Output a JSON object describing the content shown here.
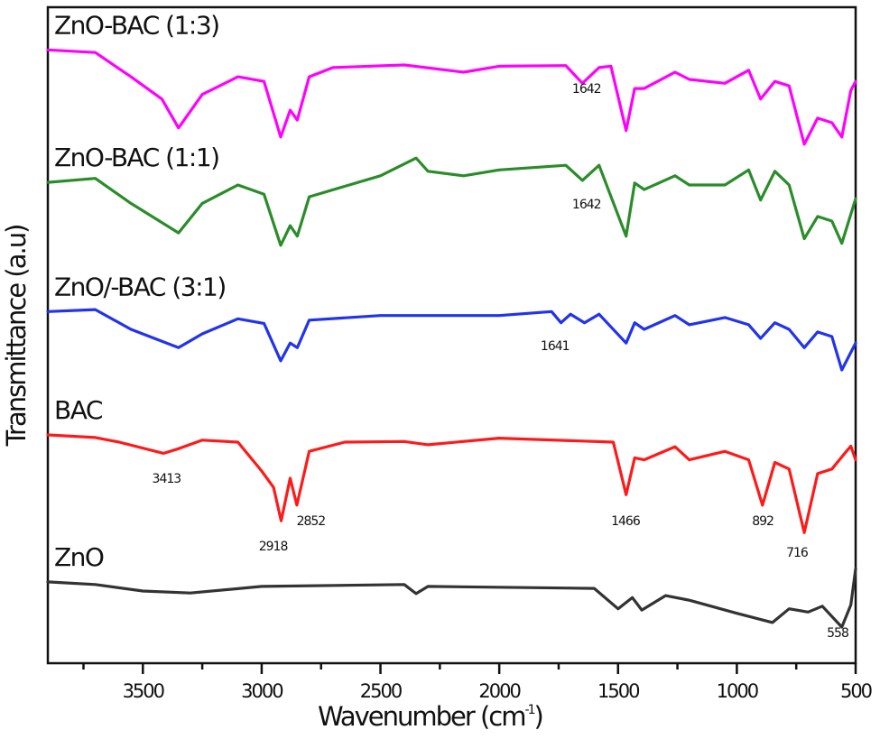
{
  "chart_data": {
    "type": "line",
    "title": "",
    "xlabel": "Wavenumber (cm",
    "xlabel_sup": "-1",
    "xlabel_close": ")",
    "ylabel": "Transmittance (a.u)",
    "xlim": [
      3900,
      500
    ],
    "ylim": [
      0,
      100
    ],
    "x_reversed": true,
    "grid": false,
    "legend": "inline labels above each curve",
    "x_ticks": [
      3500,
      3000,
      2500,
      2000,
      1500,
      1000,
      500
    ],
    "x_tick_labels": [
      "3500",
      "3000",
      "2500",
      "2000",
      "1500",
      "1000",
      "500"
    ],
    "x_minor_ticks": [
      3750,
      3250,
      2750,
      2250,
      1750,
      1250,
      750
    ],
    "series": [
      {
        "name": "ZnO-BAC (1:3)",
        "color": "#ff00ff",
        "points": [
          [
            3900,
            93.5
          ],
          [
            3700,
            93.1
          ],
          [
            3550,
            89.4
          ],
          [
            3420,
            86
          ],
          [
            3350,
            81.6
          ],
          [
            3250,
            86.7
          ],
          [
            3100,
            89.4
          ],
          [
            2990,
            88.7
          ],
          [
            2920,
            80.2
          ],
          [
            2880,
            84.3
          ],
          [
            2850,
            82.8
          ],
          [
            2800,
            89.4
          ],
          [
            2700,
            90.8
          ],
          [
            2400,
            91.2
          ],
          [
            2150,
            90.1
          ],
          [
            2000,
            91
          ],
          [
            1720,
            91.1
          ],
          [
            1650,
            88.4
          ],
          [
            1580,
            90.8
          ],
          [
            1530,
            91
          ],
          [
            1466,
            81.2
          ],
          [
            1430,
            87.6
          ],
          [
            1390,
            87.6
          ],
          [
            1260,
            90.1
          ],
          [
            1200,
            89
          ],
          [
            1050,
            88.4
          ],
          [
            950,
            90.4
          ],
          [
            900,
            86
          ],
          [
            840,
            88.7
          ],
          [
            780,
            88
          ],
          [
            716,
            79.1
          ],
          [
            660,
            83.1
          ],
          [
            600,
            82.4
          ],
          [
            558,
            80.2
          ],
          [
            520,
            87.3
          ],
          [
            500,
            88.7
          ]
        ]
      },
      {
        "name": "ZnO-BAC (1:1)",
        "color": "#2a8c2a",
        "points": [
          [
            3900,
            73.3
          ],
          [
            3700,
            73.9
          ],
          [
            3550,
            70.1
          ],
          [
            3350,
            65.6
          ],
          [
            3250,
            70.1
          ],
          [
            3100,
            72.9
          ],
          [
            2990,
            71.5
          ],
          [
            2920,
            63.7
          ],
          [
            2880,
            66.7
          ],
          [
            2850,
            65.1
          ],
          [
            2800,
            71.1
          ],
          [
            2500,
            74.3
          ],
          [
            2350,
            77
          ],
          [
            2300,
            75
          ],
          [
            2150,
            74.3
          ],
          [
            2000,
            75.2
          ],
          [
            1720,
            75.9
          ],
          [
            1650,
            73.6
          ],
          [
            1580,
            75.9
          ],
          [
            1466,
            65.1
          ],
          [
            1430,
            73.2
          ],
          [
            1390,
            72.2
          ],
          [
            1260,
            74.3
          ],
          [
            1200,
            72.9
          ],
          [
            1050,
            72.9
          ],
          [
            950,
            75.2
          ],
          [
            900,
            70.6
          ],
          [
            840,
            75
          ],
          [
            780,
            72.9
          ],
          [
            716,
            64.7
          ],
          [
            660,
            68.1
          ],
          [
            600,
            67.4
          ],
          [
            558,
            64
          ],
          [
            500,
            70.8
          ]
        ]
      },
      {
        "name": "ZnO/-BAC (3:1)",
        "color": "#2233ee",
        "points": [
          [
            3900,
            53.6
          ],
          [
            3700,
            53.9
          ],
          [
            3550,
            50.9
          ],
          [
            3350,
            48.1
          ],
          [
            3250,
            50.2
          ],
          [
            3100,
            52.5
          ],
          [
            2990,
            51.8
          ],
          [
            2920,
            46.1
          ],
          [
            2880,
            48.8
          ],
          [
            2850,
            48.1
          ],
          [
            2800,
            52.3
          ],
          [
            2500,
            53
          ],
          [
            2000,
            53
          ],
          [
            1780,
            53.6
          ],
          [
            1740,
            51.9
          ],
          [
            1700,
            53.2
          ],
          [
            1641,
            51.9
          ],
          [
            1580,
            53.2
          ],
          [
            1466,
            48.8
          ],
          [
            1430,
            51.9
          ],
          [
            1390,
            50.9
          ],
          [
            1260,
            53
          ],
          [
            1200,
            51.6
          ],
          [
            1050,
            52.7
          ],
          [
            950,
            51.6
          ],
          [
            900,
            49.5
          ],
          [
            840,
            51.9
          ],
          [
            780,
            50.9
          ],
          [
            716,
            48.1
          ],
          [
            660,
            50.5
          ],
          [
            600,
            49.8
          ],
          [
            558,
            44.7
          ],
          [
            500,
            48.8
          ]
        ]
      },
      {
        "name": "BAC",
        "color": "#ff1a1a",
        "points": [
          [
            3900,
            34.8
          ],
          [
            3700,
            34.4
          ],
          [
            3600,
            33.7
          ],
          [
            3413,
            32
          ],
          [
            3350,
            32.7
          ],
          [
            3250,
            34
          ],
          [
            3100,
            33.7
          ],
          [
            3000,
            29.3
          ],
          [
            2950,
            26.8
          ],
          [
            2918,
            21.7
          ],
          [
            2880,
            28.2
          ],
          [
            2852,
            24.1
          ],
          [
            2800,
            32.3
          ],
          [
            2650,
            33.7
          ],
          [
            2400,
            33.8
          ],
          [
            2300,
            33.3
          ],
          [
            2000,
            34.3
          ],
          [
            1520,
            33.7
          ],
          [
            1466,
            25.7
          ],
          [
            1430,
            31.3
          ],
          [
            1390,
            31
          ],
          [
            1260,
            33
          ],
          [
            1200,
            31
          ],
          [
            1050,
            32.3
          ],
          [
            950,
            31
          ],
          [
            892,
            24.1
          ],
          [
            840,
            30.6
          ],
          [
            780,
            29.6
          ],
          [
            716,
            19.9
          ],
          [
            660,
            28.9
          ],
          [
            600,
            29.6
          ],
          [
            550,
            31.8
          ],
          [
            520,
            33.1
          ],
          [
            500,
            31
          ]
        ]
      },
      {
        "name": "ZnO",
        "color": "#333333",
        "points": [
          [
            3900,
            12.4
          ],
          [
            3700,
            12
          ],
          [
            3500,
            11
          ],
          [
            3300,
            10.7
          ],
          [
            3000,
            11.7
          ],
          [
            2400,
            12
          ],
          [
            2350,
            10.6
          ],
          [
            2300,
            11.7
          ],
          [
            1600,
            11.4
          ],
          [
            1500,
            8.3
          ],
          [
            1440,
            10
          ],
          [
            1400,
            8.1
          ],
          [
            1300,
            10.3
          ],
          [
            1200,
            9.6
          ],
          [
            1000,
            7.6
          ],
          [
            850,
            6.2
          ],
          [
            780,
            8.3
          ],
          [
            700,
            7.8
          ],
          [
            640,
            8.7
          ],
          [
            558,
            5.5
          ],
          [
            520,
            8.9
          ],
          [
            500,
            14.4
          ]
        ]
      }
    ],
    "annotations": [
      {
        "text": "1642",
        "x": 1633,
        "y": 87.6
      },
      {
        "text": "1642",
        "x": 1633,
        "y": 70
      },
      {
        "text": "1641",
        "x": 1766,
        "y": 48.4
      },
      {
        "text": "3413",
        "x": 3401,
        "y": 28.2
      },
      {
        "text": "2918",
        "x": 2952,
        "y": 17.9
      },
      {
        "text": "2852",
        "x": 2793,
        "y": 21.7
      },
      {
        "text": "1466",
        "x": 1469,
        "y": 21.7
      },
      {
        "text": "892",
        "x": 891,
        "y": 21.7
      },
      {
        "text": "716",
        "x": 747,
        "y": 16.9
      },
      {
        "text": "558",
        "x": 576,
        "y": 4.7
      }
    ]
  }
}
